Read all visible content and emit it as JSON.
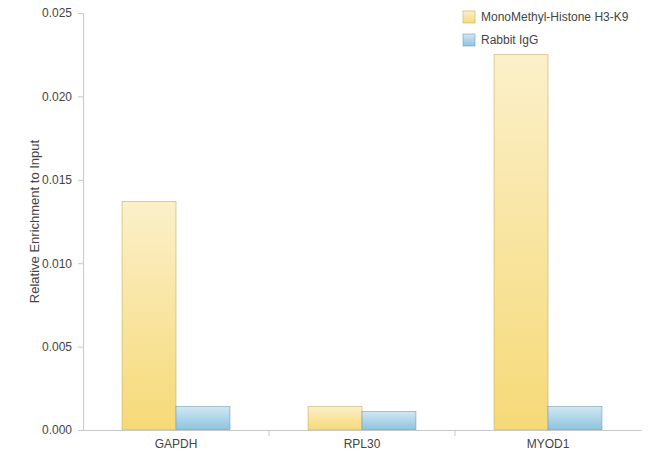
{
  "chart_data": {
    "type": "bar",
    "y_label": "Relative Enrichment to Input",
    "categories": [
      "GAPDH",
      "RPL30",
      "MYOD1"
    ],
    "series": [
      {
        "name": "MonoMethyl-Histone H3-K9",
        "color": "#f6d977",
        "values": [
          0.0137,
          0.0014,
          0.0225
        ]
      },
      {
        "name": "Rabbit IgG",
        "color": "#8dc3df",
        "values": [
          0.0014,
          0.0011,
          0.0014
        ]
      }
    ],
    "ylim": [
      0,
      0.025
    ],
    "yticks": [
      {
        "value": 0,
        "label": "0.000"
      },
      {
        "value": 0.005,
        "label": "0.005"
      },
      {
        "value": 0.01,
        "label": "0.010"
      },
      {
        "value": 0.015,
        "label": "0.015"
      },
      {
        "value": 0.02,
        "label": "0.020"
      },
      {
        "value": 0.025,
        "label": "0.025"
      }
    ],
    "grid": false,
    "legend": "upper right"
  }
}
